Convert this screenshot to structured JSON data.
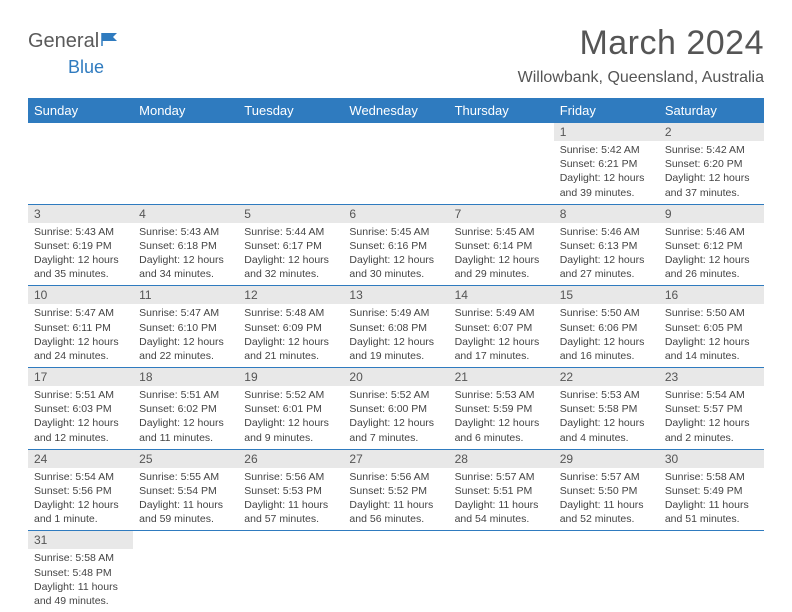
{
  "logo": {
    "left": "General",
    "right": "Blue"
  },
  "title": "March 2024",
  "location": "Willowbank, Queensland, Australia",
  "colors": {
    "header_bg": "#2f7bbf",
    "header_fg": "#ffffff",
    "daynum_bg": "#e8e8e8",
    "row_border": "#2f7bbf",
    "title_color": "#555555",
    "text_color": "#444444",
    "logo_gray": "#5a5a5a",
    "logo_blue": "#2f7bbf",
    "page_bg": "#ffffff"
  },
  "weekdays": [
    "Sunday",
    "Monday",
    "Tuesday",
    "Wednesday",
    "Thursday",
    "Friday",
    "Saturday"
  ],
  "weeks": [
    [
      null,
      null,
      null,
      null,
      null,
      {
        "n": "1",
        "sr": "5:42 AM",
        "ss": "6:21 PM",
        "dl": "12 hours and 39 minutes."
      },
      {
        "n": "2",
        "sr": "5:42 AM",
        "ss": "6:20 PM",
        "dl": "12 hours and 37 minutes."
      }
    ],
    [
      {
        "n": "3",
        "sr": "5:43 AM",
        "ss": "6:19 PM",
        "dl": "12 hours and 35 minutes."
      },
      {
        "n": "4",
        "sr": "5:43 AM",
        "ss": "6:18 PM",
        "dl": "12 hours and 34 minutes."
      },
      {
        "n": "5",
        "sr": "5:44 AM",
        "ss": "6:17 PM",
        "dl": "12 hours and 32 minutes."
      },
      {
        "n": "6",
        "sr": "5:45 AM",
        "ss": "6:16 PM",
        "dl": "12 hours and 30 minutes."
      },
      {
        "n": "7",
        "sr": "5:45 AM",
        "ss": "6:14 PM",
        "dl": "12 hours and 29 minutes."
      },
      {
        "n": "8",
        "sr": "5:46 AM",
        "ss": "6:13 PM",
        "dl": "12 hours and 27 minutes."
      },
      {
        "n": "9",
        "sr": "5:46 AM",
        "ss": "6:12 PM",
        "dl": "12 hours and 26 minutes."
      }
    ],
    [
      {
        "n": "10",
        "sr": "5:47 AM",
        "ss": "6:11 PM",
        "dl": "12 hours and 24 minutes."
      },
      {
        "n": "11",
        "sr": "5:47 AM",
        "ss": "6:10 PM",
        "dl": "12 hours and 22 minutes."
      },
      {
        "n": "12",
        "sr": "5:48 AM",
        "ss": "6:09 PM",
        "dl": "12 hours and 21 minutes."
      },
      {
        "n": "13",
        "sr": "5:49 AM",
        "ss": "6:08 PM",
        "dl": "12 hours and 19 minutes."
      },
      {
        "n": "14",
        "sr": "5:49 AM",
        "ss": "6:07 PM",
        "dl": "12 hours and 17 minutes."
      },
      {
        "n": "15",
        "sr": "5:50 AM",
        "ss": "6:06 PM",
        "dl": "12 hours and 16 minutes."
      },
      {
        "n": "16",
        "sr": "5:50 AM",
        "ss": "6:05 PM",
        "dl": "12 hours and 14 minutes."
      }
    ],
    [
      {
        "n": "17",
        "sr": "5:51 AM",
        "ss": "6:03 PM",
        "dl": "12 hours and 12 minutes."
      },
      {
        "n": "18",
        "sr": "5:51 AM",
        "ss": "6:02 PM",
        "dl": "12 hours and 11 minutes."
      },
      {
        "n": "19",
        "sr": "5:52 AM",
        "ss": "6:01 PM",
        "dl": "12 hours and 9 minutes."
      },
      {
        "n": "20",
        "sr": "5:52 AM",
        "ss": "6:00 PM",
        "dl": "12 hours and 7 minutes."
      },
      {
        "n": "21",
        "sr": "5:53 AM",
        "ss": "5:59 PM",
        "dl": "12 hours and 6 minutes."
      },
      {
        "n": "22",
        "sr": "5:53 AM",
        "ss": "5:58 PM",
        "dl": "12 hours and 4 minutes."
      },
      {
        "n": "23",
        "sr": "5:54 AM",
        "ss": "5:57 PM",
        "dl": "12 hours and 2 minutes."
      }
    ],
    [
      {
        "n": "24",
        "sr": "5:54 AM",
        "ss": "5:56 PM",
        "dl": "12 hours and 1 minute."
      },
      {
        "n": "25",
        "sr": "5:55 AM",
        "ss": "5:54 PM",
        "dl": "11 hours and 59 minutes."
      },
      {
        "n": "26",
        "sr": "5:56 AM",
        "ss": "5:53 PM",
        "dl": "11 hours and 57 minutes."
      },
      {
        "n": "27",
        "sr": "5:56 AM",
        "ss": "5:52 PM",
        "dl": "11 hours and 56 minutes."
      },
      {
        "n": "28",
        "sr": "5:57 AM",
        "ss": "5:51 PM",
        "dl": "11 hours and 54 minutes."
      },
      {
        "n": "29",
        "sr": "5:57 AM",
        "ss": "5:50 PM",
        "dl": "11 hours and 52 minutes."
      },
      {
        "n": "30",
        "sr": "5:58 AM",
        "ss": "5:49 PM",
        "dl": "11 hours and 51 minutes."
      }
    ],
    [
      {
        "n": "31",
        "sr": "5:58 AM",
        "ss": "5:48 PM",
        "dl": "11 hours and 49 minutes."
      },
      null,
      null,
      null,
      null,
      null,
      null
    ]
  ],
  "labels": {
    "sunrise": "Sunrise:",
    "sunset": "Sunset:",
    "daylight": "Daylight:"
  }
}
